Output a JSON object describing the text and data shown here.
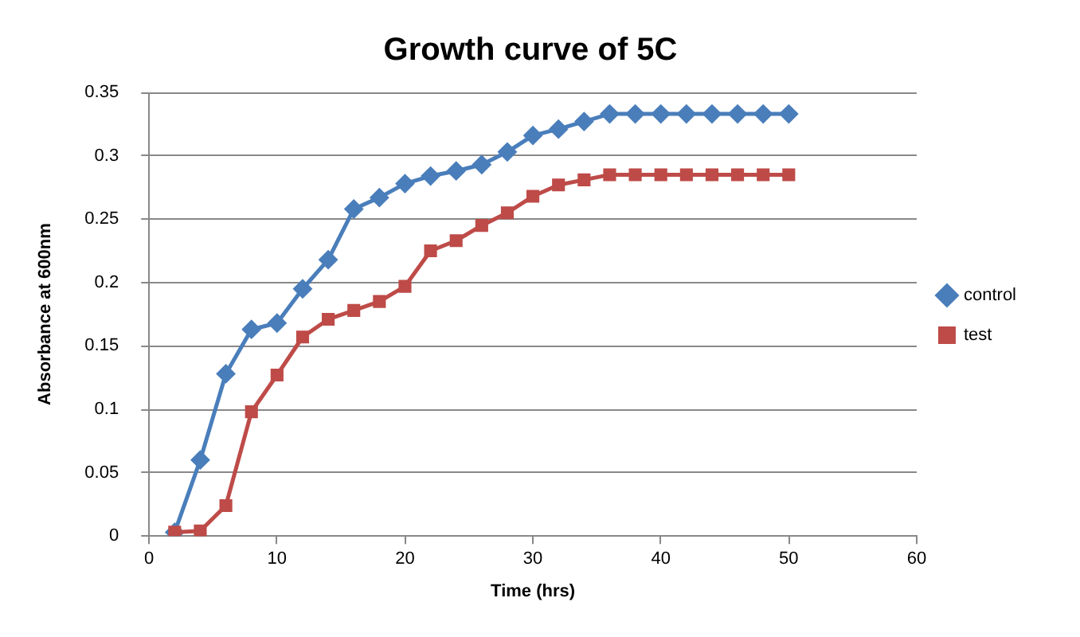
{
  "chart_data": {
    "type": "line",
    "title": "Growth curve of 5C",
    "xlabel": "Time (hrs)",
    "ylabel": "Absorbance at 600nm",
    "x": [
      2,
      4,
      6,
      8,
      10,
      12,
      14,
      16,
      18,
      20,
      22,
      24,
      26,
      28,
      30,
      32,
      34,
      36,
      38,
      40,
      42,
      44,
      46,
      48,
      50
    ],
    "series": [
      {
        "name": "control",
        "color": "#4a7ebb",
        "marker": "diamond",
        "values": [
          0.003,
          0.06,
          0.128,
          0.163,
          0.168,
          0.195,
          0.218,
          0.258,
          0.267,
          0.278,
          0.284,
          0.288,
          0.293,
          0.303,
          0.316,
          0.321,
          0.327,
          0.333,
          0.333,
          0.333,
          0.333,
          0.333,
          0.333,
          0.333,
          0.333
        ]
      },
      {
        "name": "test",
        "color": "#be4b48",
        "marker": "square",
        "values": [
          0.003,
          0.004,
          0.024,
          0.098,
          0.127,
          0.157,
          0.171,
          0.178,
          0.185,
          0.197,
          0.225,
          0.233,
          0.245,
          0.255,
          0.268,
          0.277,
          0.281,
          0.285,
          0.285,
          0.285,
          0.285,
          0.285,
          0.285,
          0.285,
          0.285
        ]
      }
    ],
    "xlim": [
      0,
      60
    ],
    "xticks": [
      0,
      10,
      20,
      30,
      40,
      50,
      60
    ],
    "ylim": [
      0,
      0.35
    ],
    "yticks": [
      0,
      0.05,
      0.1,
      0.15,
      0.2,
      0.25,
      0.3,
      0.35
    ],
    "grid": "y",
    "legend": "right",
    "line_style": "solid"
  }
}
